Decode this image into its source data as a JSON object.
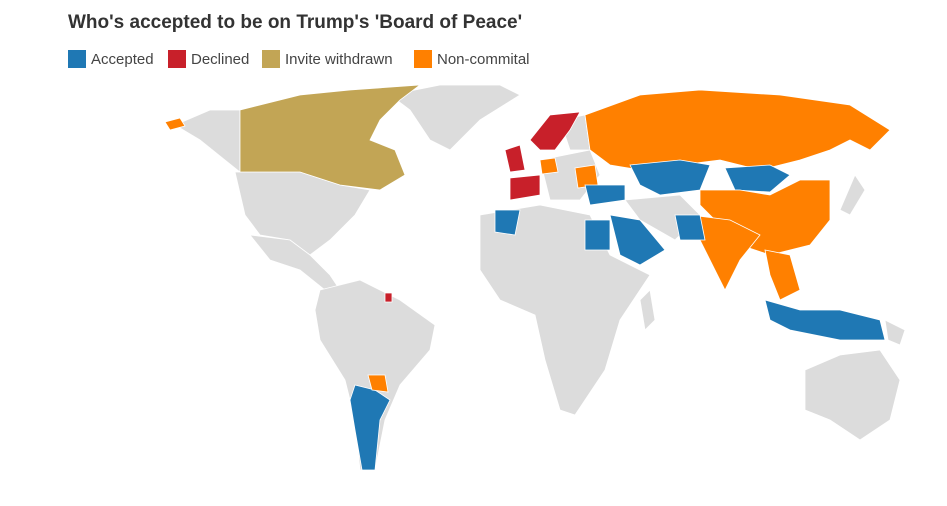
{
  "title": "Who's accepted to be on Trump's 'Board of Peace'",
  "legend": [
    {
      "label": "Accepted",
      "color": "#1f78b4"
    },
    {
      "label": "Declined",
      "color": "#c8202a"
    },
    {
      "label": "Invite withdrawn",
      "color": "#c2a555"
    },
    {
      "label": "Non-commital",
      "color": "#ff8000"
    }
  ]
}
